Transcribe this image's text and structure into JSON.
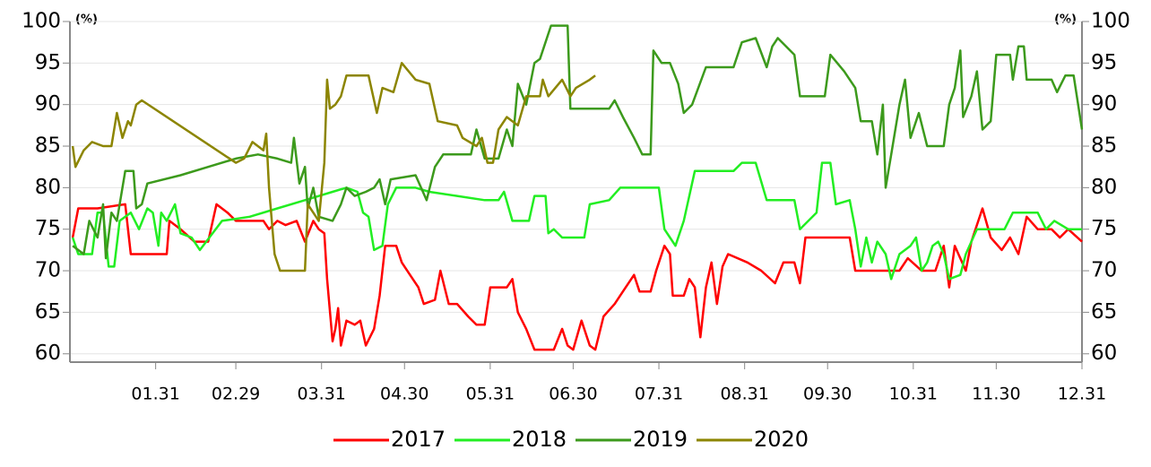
{
  "chart_data": {
    "type": "line",
    "y_unit_label": "(%)",
    "y2_unit_label": "(%)",
    "xlim": [
      0,
      366
    ],
    "xticks": [
      {
        "value": 31,
        "label": "01.31"
      },
      {
        "value": 60,
        "label": "02.29"
      },
      {
        "value": 91,
        "label": "03.31"
      },
      {
        "value": 121,
        "label": "04.30"
      },
      {
        "value": 152,
        "label": "05.31"
      },
      {
        "value": 182,
        "label": "06.30"
      },
      {
        "value": 213,
        "label": "07.31"
      },
      {
        "value": 244,
        "label": "08.31"
      },
      {
        "value": 274,
        "label": "09.30"
      },
      {
        "value": 305,
        "label": "10.31"
      },
      {
        "value": 335,
        "label": "11.30"
      },
      {
        "value": 366,
        "label": "12.31"
      }
    ],
    "ylim": [
      59,
      100
    ],
    "yticks": [
      60,
      65,
      70,
      75,
      80,
      85,
      90,
      95,
      100
    ],
    "y2lim": [
      59,
      100
    ],
    "y2ticks": [
      60,
      65,
      70,
      75,
      80,
      85,
      90,
      95,
      100
    ],
    "grid": true,
    "legend": "bottom",
    "series": [
      {
        "name": "2017",
        "color": "#ff0000",
        "x": [
          1,
          3,
          10,
          20,
          22,
          35,
          36,
          40,
          45,
          50,
          53,
          57,
          60,
          70,
          72,
          75,
          78,
          82,
          85,
          88,
          90,
          92,
          93,
          95,
          96,
          97,
          98,
          100,
          103,
          105,
          107,
          110,
          112,
          114,
          118,
          120,
          123,
          126,
          128,
          132,
          134,
          137,
          140,
          144,
          147,
          150,
          152,
          158,
          160,
          162,
          165,
          168,
          175,
          178,
          180,
          182,
          185,
          188,
          190,
          193,
          197,
          200,
          204,
          206,
          210,
          212,
          215,
          217,
          218,
          222,
          224,
          226,
          228,
          230,
          232,
          234,
          236,
          238,
          245,
          250,
          255,
          258,
          262,
          264,
          266,
          282,
          284,
          300,
          303,
          308,
          313,
          316,
          318,
          320,
          324,
          326,
          330,
          333,
          337,
          340,
          343,
          346,
          350,
          355,
          358,
          361,
          366
        ],
        "values": [
          74,
          77.5,
          77.5,
          78,
          72,
          72,
          76,
          75,
          73.5,
          73.5,
          78,
          77,
          76,
          76,
          75,
          76,
          75.5,
          76,
          73.5,
          76,
          75,
          74.5,
          69,
          61.5,
          63,
          65.5,
          61,
          64,
          63.5,
          64,
          61,
          63,
          67,
          73,
          73,
          71,
          69.5,
          68,
          66,
          66.5,
          70,
          66,
          66,
          64.5,
          63.5,
          63.5,
          68,
          68,
          69,
          65,
          63,
          60.5,
          60.5,
          63,
          61,
          60.5,
          64,
          61,
          60.5,
          64.5,
          66,
          67.5,
          69.5,
          67.5,
          67.5,
          70,
          73,
          72,
          67,
          67,
          69,
          68,
          62,
          68,
          71,
          66,
          70.5,
          72,
          71,
          70,
          68.5,
          71,
          71,
          68.5,
          74,
          74,
          70,
          70,
          71.5,
          70,
          70,
          73,
          68,
          73,
          70,
          73.5,
          77.5,
          74,
          72.5,
          74,
          72,
          76.5,
          75,
          75,
          74,
          75,
          73.5
        ]
      },
      {
        "name": "2018",
        "color": "#22ee22",
        "x": [
          1,
          3,
          8,
          10,
          12,
          14,
          16,
          18,
          22,
          25,
          28,
          30,
          32,
          33,
          35,
          38,
          40,
          44,
          47,
          55,
          65,
          75,
          85,
          95,
          100,
          104,
          106,
          108,
          110,
          113,
          115,
          118,
          125,
          130,
          140,
          150,
          155,
          157,
          160,
          166,
          168,
          172,
          173,
          175,
          178,
          186,
          188,
          195,
          199,
          213,
          215,
          217,
          219,
          222,
          226,
          240,
          243,
          248,
          252,
          262,
          264,
          270,
          272,
          275,
          277,
          282,
          284,
          286,
          288,
          290,
          292,
          295,
          297,
          300,
          304,
          306,
          308,
          310,
          312,
          314,
          316,
          318,
          322,
          324,
          328,
          338,
          341,
          350,
          353,
          356,
          361,
          366
        ],
        "values": [
          74,
          72,
          72,
          77,
          77,
          70.5,
          70.5,
          76,
          77,
          75,
          77.5,
          77,
          73,
          77,
          76,
          78,
          74.5,
          74,
          72.5,
          76,
          76.5,
          77.5,
          78.5,
          79.5,
          80,
          79.5,
          77,
          76.5,
          72.5,
          73,
          78,
          80,
          80,
          79.5,
          79,
          78.5,
          78.5,
          79.5,
          76,
          76,
          79,
          79,
          74.5,
          75,
          74,
          74,
          78,
          78.5,
          80,
          80,
          75,
          74,
          73,
          76,
          82,
          82,
          83,
          83,
          78.5,
          78.5,
          75,
          77,
          83,
          83,
          78,
          78.5,
          75,
          70.5,
          74,
          71,
          73.5,
          72,
          69,
          72,
          73,
          74,
          70,
          71,
          73,
          73.5,
          72,
          69,
          69.5,
          72,
          75,
          75,
          77,
          77,
          75,
          76,
          75,
          75
        ]
      },
      {
        "name": "2019",
        "color": "#3c9a1c",
        "x": [
          1,
          5,
          7,
          10,
          12,
          13,
          15,
          17,
          20,
          23,
          24,
          26,
          28,
          40,
          50,
          60,
          68,
          75,
          80,
          81,
          83,
          85,
          86,
          88,
          90,
          95,
          98,
          100,
          103,
          107,
          110,
          112,
          114,
          116,
          125,
          129,
          132,
          135,
          145,
          147,
          150,
          155,
          158,
          160,
          162,
          165,
          168,
          170,
          174,
          180,
          181,
          195,
          197,
          200,
          204,
          207,
          210,
          211,
          214,
          217,
          220,
          222,
          225,
          230,
          240,
          243,
          248,
          252,
          254,
          256,
          262,
          264,
          273,
          275,
          280,
          284,
          286,
          290,
          292,
          294,
          295,
          297,
          300,
          302,
          304,
          307,
          310,
          316,
          318,
          320,
          322,
          323,
          326,
          328,
          330,
          333,
          335,
          340,
          341,
          343,
          345,
          346,
          355,
          357,
          360,
          363,
          366
        ],
        "values": [
          73,
          72,
          76,
          74,
          78,
          71.5,
          77,
          76,
          82,
          82,
          77.5,
          78,
          80.5,
          81.5,
          82.5,
          83.5,
          84,
          83.5,
          83,
          86,
          80.5,
          82.5,
          77.5,
          80,
          76.5,
          76,
          78,
          80,
          79,
          79.5,
          80,
          81,
          78,
          81,
          81.5,
          78.5,
          82.5,
          84,
          84,
          87,
          83.5,
          83.5,
          87,
          85,
          92.5,
          90,
          95,
          95.5,
          99.5,
          99.5,
          89.5,
          89.5,
          90.5,
          88.5,
          86,
          84,
          84,
          96.5,
          95,
          95,
          92.5,
          89,
          90,
          94.5,
          94.5,
          97.5,
          98,
          94.5,
          97,
          98,
          96,
          91,
          91,
          96,
          94,
          92,
          88,
          88,
          84,
          90,
          80,
          84,
          90,
          93,
          86,
          89,
          85,
          85,
          90,
          92,
          96.5,
          88.5,
          91,
          94,
          87,
          88,
          96,
          96,
          93,
          97,
          97,
          93,
          93,
          91.5,
          93.5,
          93.5,
          87
        ]
      },
      {
        "name": "2020",
        "color": "#8c8500",
        "x": [
          1,
          2,
          5,
          8,
          12,
          15,
          17,
          19,
          21,
          22,
          24,
          26,
          60,
          63,
          66,
          70,
          71,
          72,
          74,
          76,
          85,
          86,
          90,
          92,
          93,
          94,
          96,
          98,
          100,
          108,
          111,
          113,
          117,
          120,
          125,
          130,
          133,
          140,
          142,
          147,
          149,
          151,
          153,
          155,
          158,
          162,
          165,
          170,
          171,
          173,
          178,
          181,
          183,
          188,
          190
        ],
        "values": [
          85,
          82.5,
          84.5,
          85.5,
          85,
          85,
          89,
          86,
          88,
          87.5,
          90,
          90.5,
          83,
          83.5,
          85.5,
          84.5,
          86.5,
          80,
          72,
          70,
          70,
          78,
          76,
          83,
          93,
          89.5,
          90,
          91,
          93.5,
          93.5,
          89,
          92,
          91.5,
          95,
          93,
          92.5,
          88,
          87.5,
          86,
          85,
          86,
          83,
          83,
          87,
          88.5,
          87.5,
          91,
          91,
          93,
          91,
          93,
          91,
          92,
          93,
          93.5
        ]
      }
    ]
  }
}
